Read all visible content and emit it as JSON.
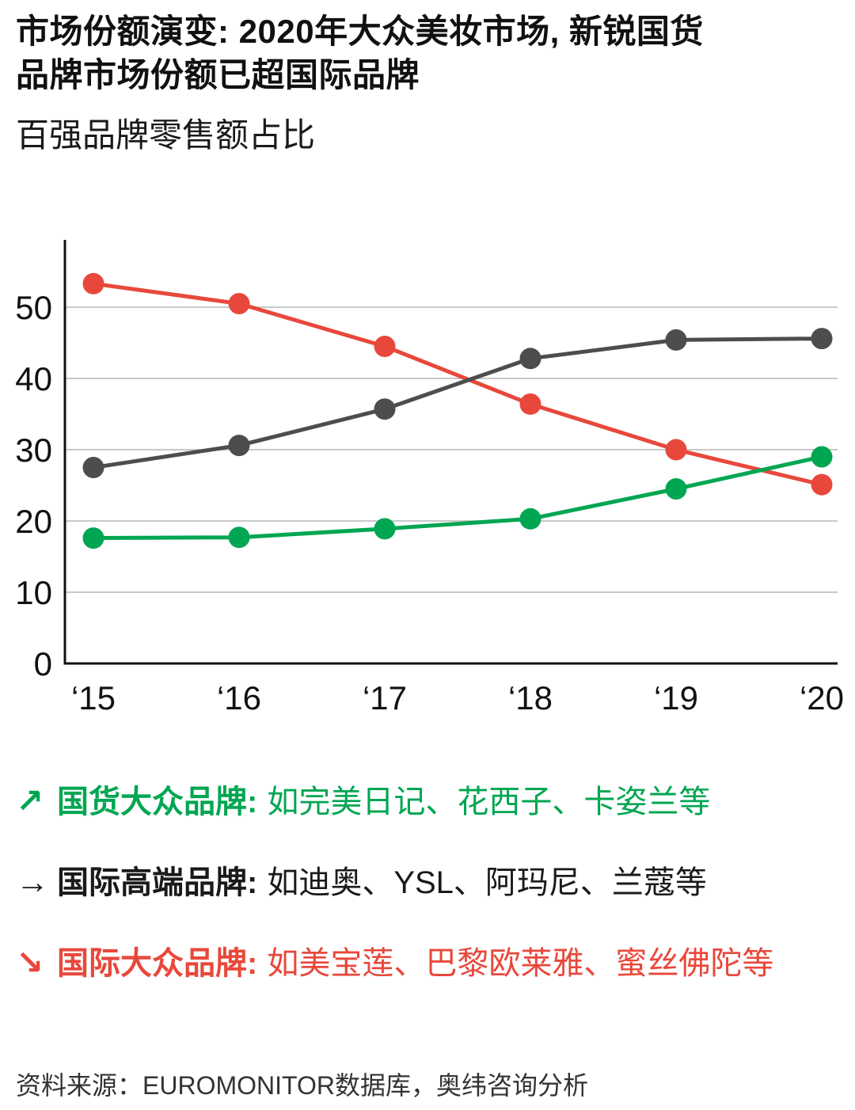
{
  "header": {
    "title": "市场份额演变: 2020年大众美妆市场, 新锐国货\n品牌市场份额已超国际品牌",
    "subtitle": "百强品牌零售额占比"
  },
  "chart_data": {
    "type": "line",
    "title": "百强品牌零售额占比",
    "x": [
      "‘15",
      "‘16",
      "‘17",
      "‘18",
      "‘19",
      "‘20"
    ],
    "ylim": [
      0,
      57
    ],
    "yticks": [
      0,
      10,
      20,
      30,
      40,
      50
    ],
    "grid": true,
    "legend_position": "below",
    "series": [
      {
        "name": "国货大众品牌",
        "color": "#00A651",
        "values": [
          17.6,
          17.7,
          18.9,
          20.3,
          24.5,
          29.0
        ]
      },
      {
        "name": "国际高端品牌",
        "color": "#4D4D4D",
        "values": [
          27.5,
          30.6,
          35.7,
          42.8,
          45.4,
          45.6
        ]
      },
      {
        "name": "国际大众品牌",
        "color": "#E8483C",
        "values": [
          53.3,
          50.5,
          44.5,
          36.4,
          30.0,
          25.1
        ]
      }
    ]
  },
  "legend": {
    "items": [
      {
        "arrow": "↗",
        "label": "国货大众品牌:",
        "desc": "如完美日记、花西子、卡姿兰等",
        "color": "#00A651"
      },
      {
        "arrow": "→",
        "label": "国际高端品牌:",
        "desc": "如迪奥、YSL、阿玛尼、兰蔻等",
        "color": "#1a1a1a"
      },
      {
        "arrow": "↘",
        "label": "国际大众品牌:",
        "desc": "如美宝莲、巴黎欧莱雅、蜜丝佛陀等",
        "color": "#E8483C"
      }
    ]
  },
  "footer": {
    "source": "资料来源：EUROMONITOR数据库，奥纬咨询分析"
  }
}
